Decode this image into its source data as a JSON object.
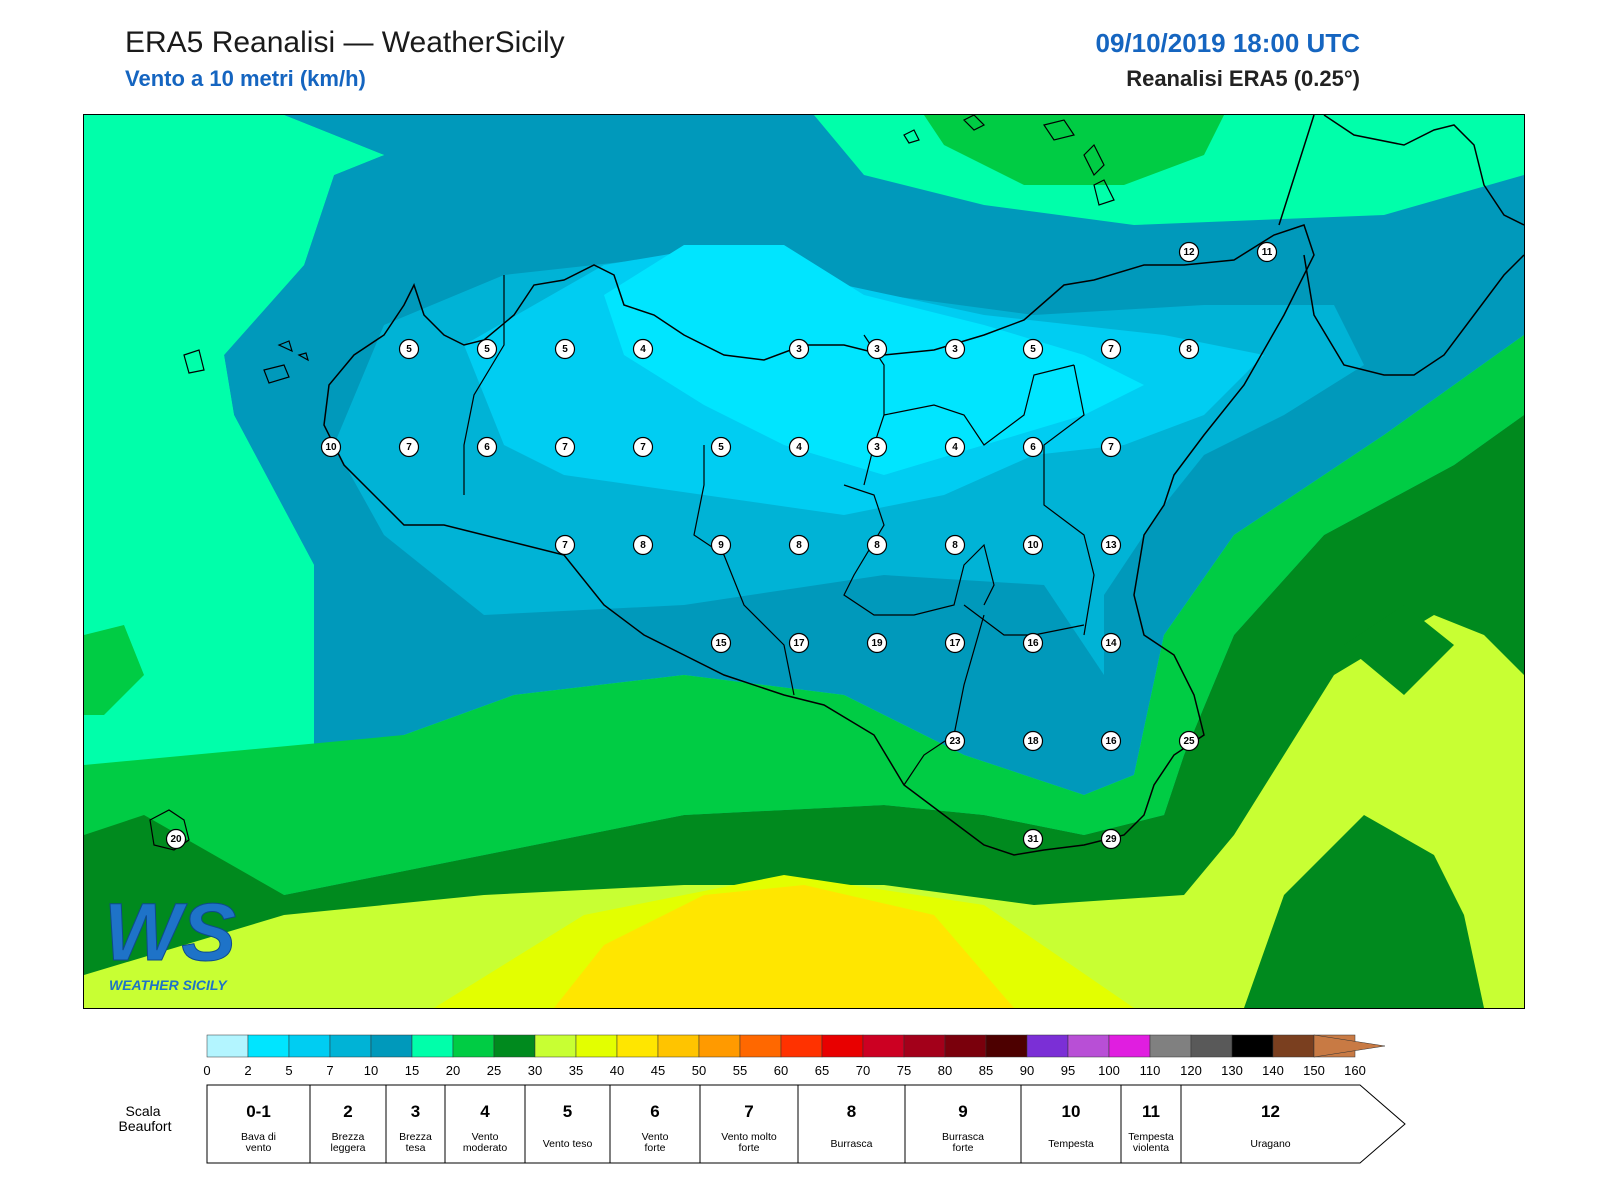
{
  "header": {
    "title": "ERA5 Reanalisi — WeatherSicily",
    "subtitle": "Vento a 10 metri (km/h)",
    "datetime": "09/10/2019 18:00 UTC",
    "source": "Reanalisi ERA5 (0.25°)"
  },
  "logo": {
    "letters": "WS",
    "text": "WEATHER SICILY"
  },
  "scale": {
    "ticks": [
      "0",
      "2",
      "5",
      "7",
      "10",
      "15",
      "20",
      "25",
      "30",
      "35",
      "40",
      "45",
      "50",
      "55",
      "60",
      "65",
      "70",
      "75",
      "80",
      "85",
      "90",
      "95",
      "100",
      "110",
      "120",
      "130",
      "140",
      "150",
      "160"
    ],
    "colors": [
      "#b3f5ff",
      "#00e5ff",
      "#00cdf2",
      "#00b3d6",
      "#0099bb",
      "#00ffaa",
      "#00cc44",
      "#008a1e",
      "#c8ff33",
      "#e3ff00",
      "#ffe600",
      "#ffc400",
      "#ff9a00",
      "#ff6800",
      "#ff3200",
      "#e80000",
      "#cc0022",
      "#a3001a",
      "#7a000c",
      "#4d0000",
      "#7b2fd6",
      "#b84fd6",
      "#e01ee0",
      "#808080",
      "#595959",
      "#000000",
      "#7a3f1f",
      "#c87a44"
    ]
  },
  "beaufort": {
    "label": "Scala Beaufort",
    "levels": [
      {
        "num": "0-1",
        "desc": [
          "Bava di",
          "vento"
        ]
      },
      {
        "num": "2",
        "desc": [
          "Brezza",
          "leggera"
        ]
      },
      {
        "num": "3",
        "desc": [
          "Brezza",
          "tesa"
        ]
      },
      {
        "num": "4",
        "desc": [
          "Vento",
          "moderato"
        ]
      },
      {
        "num": "5",
        "desc": [
          "Vento teso"
        ]
      },
      {
        "num": "6",
        "desc": [
          "Vento",
          "forte"
        ]
      },
      {
        "num": "7",
        "desc": [
          "Vento molto",
          "forte"
        ]
      },
      {
        "num": "8",
        "desc": [
          "Burrasca"
        ]
      },
      {
        "num": "9",
        "desc": [
          "Burrasca",
          "forte"
        ]
      },
      {
        "num": "10",
        "desc": [
          "Tempesta"
        ]
      },
      {
        "num": "11",
        "desc": [
          "Tempesta",
          "violenta"
        ]
      },
      {
        "num": "12",
        "desc": [
          "Uragano"
        ]
      }
    ]
  },
  "stations": [
    {
      "v": "12"
    },
    {
      "v": "11"
    },
    {
      "v": "5"
    },
    {
      "v": "5"
    },
    {
      "v": "5"
    },
    {
      "v": "4"
    },
    {
      "v": "3"
    },
    {
      "v": "3"
    },
    {
      "v": "3"
    },
    {
      "v": "5"
    },
    {
      "v": "7"
    },
    {
      "v": "8"
    },
    {
      "v": "10"
    },
    {
      "v": "7"
    },
    {
      "v": "6"
    },
    {
      "v": "7"
    },
    {
      "v": "7"
    },
    {
      "v": "5"
    },
    {
      "v": "4"
    },
    {
      "v": "3"
    },
    {
      "v": "4"
    },
    {
      "v": "6"
    },
    {
      "v": "7"
    },
    {
      "v": "7"
    },
    {
      "v": "8"
    },
    {
      "v": "9"
    },
    {
      "v": "8"
    },
    {
      "v": "8"
    },
    {
      "v": "8"
    },
    {
      "v": "10"
    },
    {
      "v": "13"
    },
    {
      "v": "15"
    },
    {
      "v": "17"
    },
    {
      "v": "19"
    },
    {
      "v": "17"
    },
    {
      "v": "16"
    },
    {
      "v": "14"
    },
    {
      "v": "23"
    },
    {
      "v": "18"
    },
    {
      "v": "16"
    },
    {
      "v": "25"
    },
    {
      "v": "20"
    },
    {
      "v": "31"
    },
    {
      "v": "29"
    }
  ]
}
